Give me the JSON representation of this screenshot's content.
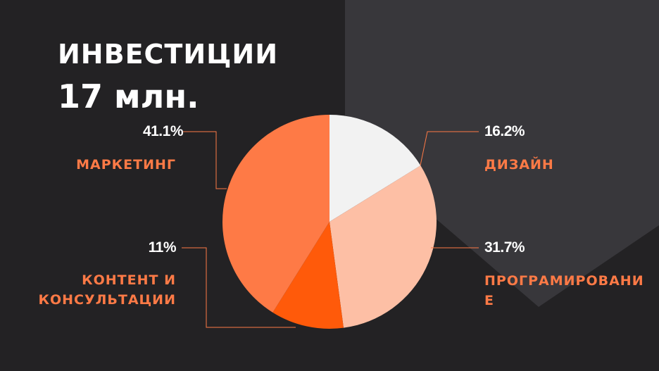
{
  "chart_data": {
    "type": "pie",
    "title": "ИНВЕСТИЦИИ",
    "subtitle": "17 млн.",
    "categories": [
      "ДИЗАЙН",
      "ПРОГРАМИРОВАНИЕ",
      "КОНТЕНТ И КОНСУЛЬТАЦИИ",
      "МАРКЕТИНГ"
    ],
    "values": [
      16.2,
      31.7,
      11,
      41.1
    ],
    "value_labels": [
      "16.2%",
      "31.7%",
      "11%",
      "41.1%"
    ],
    "colors": [
      "#f2f2f2",
      "#fdbfa5",
      "#ff5a0a",
      "#fe7a46"
    ]
  }
}
